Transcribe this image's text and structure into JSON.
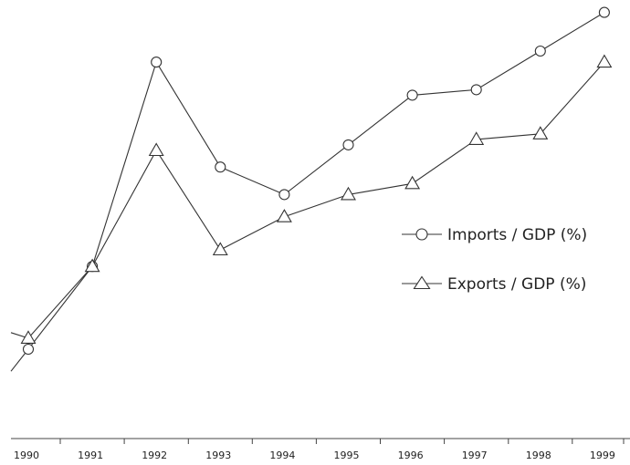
{
  "chart_data": {
    "type": "line",
    "title": "",
    "xlabel": "",
    "ylabel": "",
    "categories": [
      "1990",
      "1991",
      "1992",
      "1993",
      "1994",
      "1995",
      "1996",
      "1997",
      "1998",
      "1999"
    ],
    "ylim": [
      0,
      100
    ],
    "grid": false,
    "legend_position": "center-right",
    "series": [
      {
        "name": "Imports / GDP (%)",
        "marker": "circle",
        "values": [
          39,
          54,
          91,
          72,
          67,
          76,
          85,
          86,
          93,
          100
        ]
      },
      {
        "name": "Exports / GDP (%)",
        "marker": "triangle",
        "values": [
          41,
          54,
          75,
          57,
          63,
          67,
          69,
          77,
          78,
          91
        ]
      }
    ],
    "edge_values": {
      "left": [
        35,
        42
      ]
    },
    "colors": {
      "line": "#333333",
      "marker_fill": "#ffffff"
    }
  }
}
